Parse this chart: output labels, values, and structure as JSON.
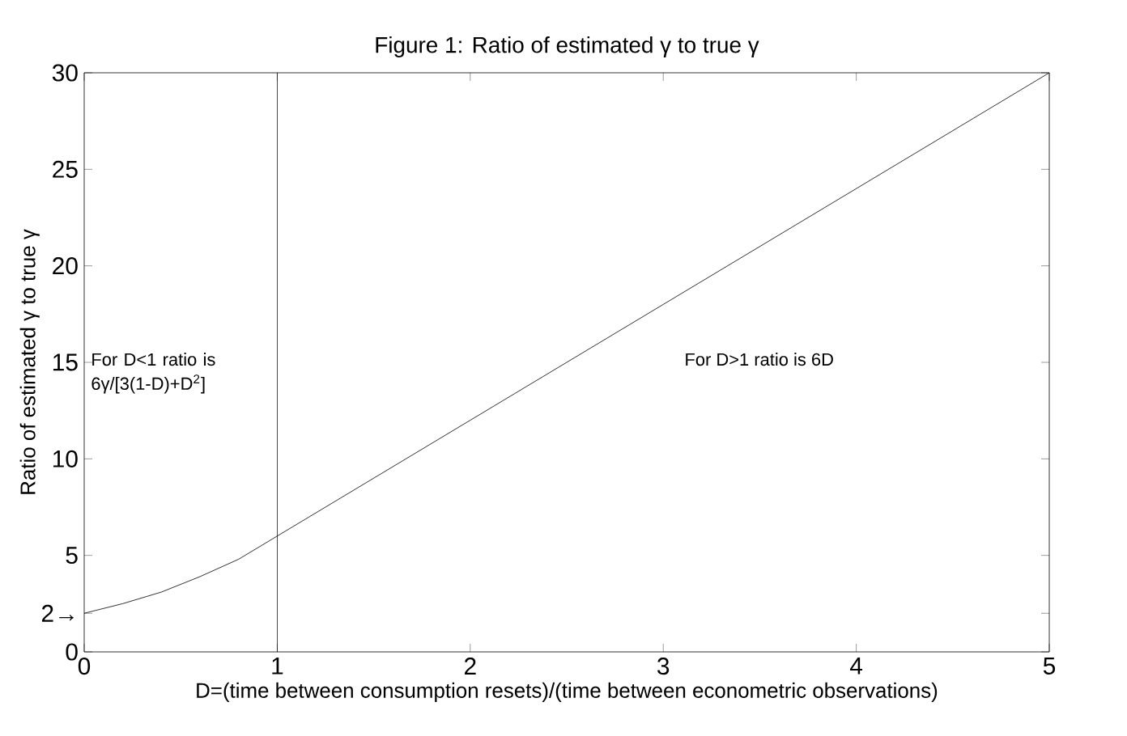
{
  "chart_data": {
    "type": "line",
    "title": "Figure 1: Ratio of estimated γ to true γ",
    "xlabel": "D=(time between consumption resets)/(time between econometric observations)",
    "ylabel": "Ratio of estimated γ to true γ",
    "x": [
      0,
      0.2,
      0.4,
      0.6,
      0.8,
      1,
      2,
      3,
      4,
      5
    ],
    "series": [
      {
        "color": "#000000",
        "values": [
          2,
          2.5,
          3.1,
          3.9,
          4.8,
          6,
          12,
          18,
          24,
          30
        ]
      }
    ],
    "xlim": [
      0,
      5
    ],
    "ylim": [
      0,
      30
    ],
    "xticks": [
      0,
      1,
      2,
      3,
      4,
      5
    ],
    "yticks": [
      0,
      {
        "value": 2,
        "label": "2→"
      },
      5,
      10,
      15,
      20,
      25,
      30
    ],
    "ref_lines": [
      {
        "axis": "x",
        "value": 1,
        "color": "#000000"
      }
    ],
    "annotations": [
      "For D<1 ratio is 6γ/[3(1-D)+D$^{2}$]",
      "For D>1 ratio is 6D"
    ],
    "grid": false,
    "marker": "none",
    "line_style": "solid"
  }
}
